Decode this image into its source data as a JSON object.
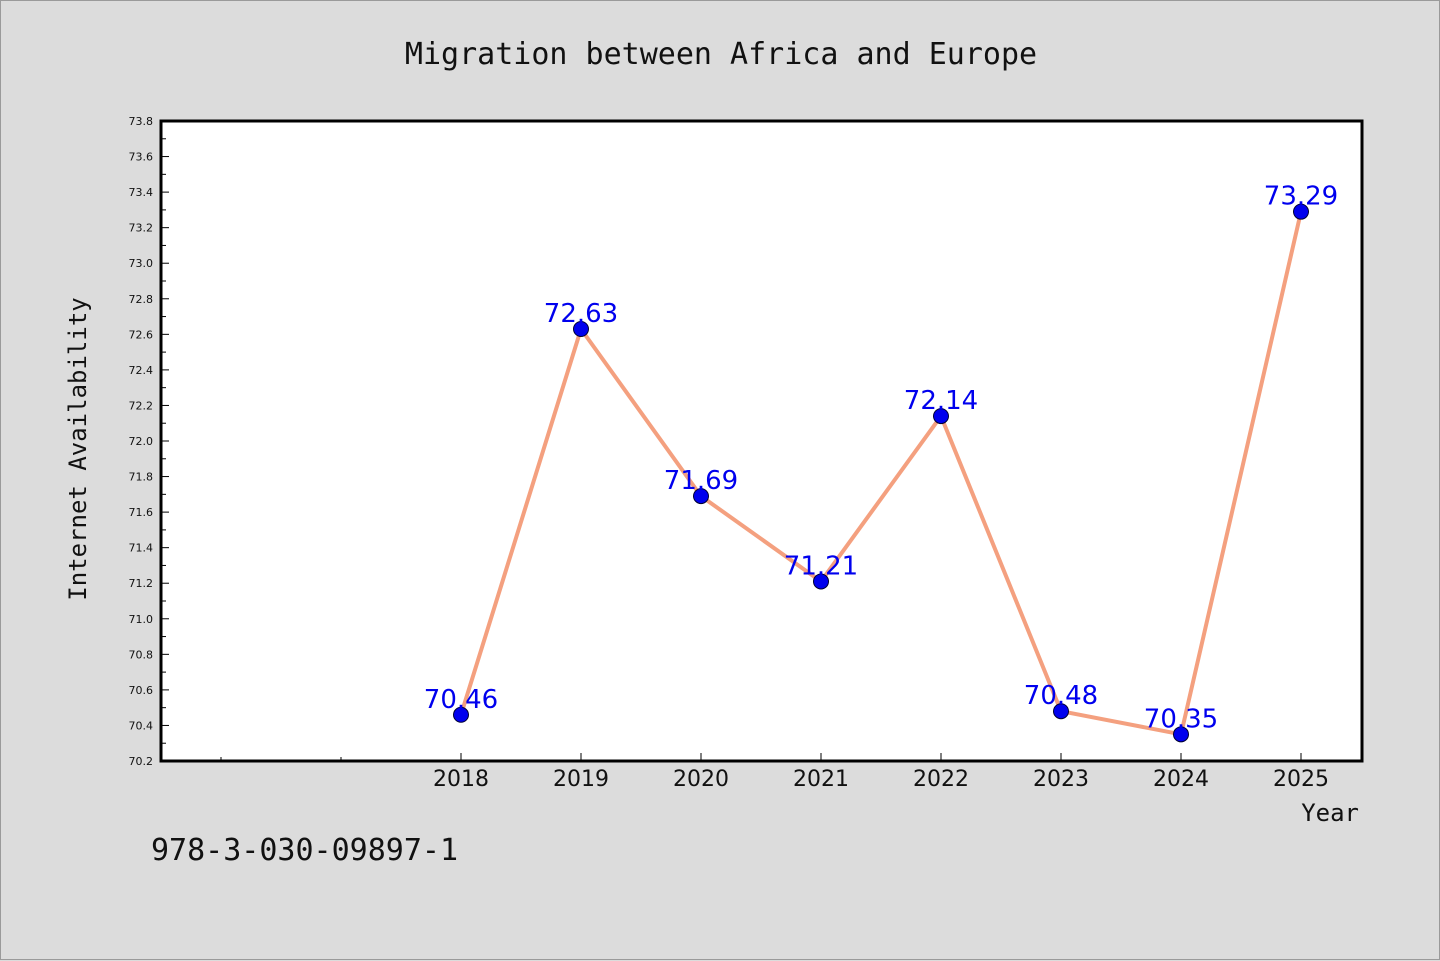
{
  "chart_data": {
    "type": "line",
    "title": "Migration between Africa and Europe",
    "xlabel": "Year",
    "ylabel": "Internet Availability",
    "categories": [
      "2018",
      "2019",
      "2020",
      "2021",
      "2022",
      "2023",
      "2024",
      "2025"
    ],
    "series": [
      {
        "values": [
          70.46,
          72.63,
          71.69,
          71.21,
          72.14,
          70.48,
          70.35,
          73.29
        ]
      }
    ],
    "data_labels": [
      "70.46",
      "72.63",
      "71.69",
      "71.21",
      "72.14",
      "70.48",
      "70.35",
      "73.29"
    ],
    "ylim": [
      70.2,
      73.8
    ],
    "y_ticks": [
      "70.2",
      "70.4",
      "70.6",
      "70.8",
      "71.0",
      "71.2",
      "71.4",
      "71.6",
      "71.8",
      "72.0",
      "72.2",
      "72.4",
      "72.6",
      "72.8",
      "73.0",
      "73.2",
      "73.4",
      "73.6",
      "73.8"
    ],
    "grid": false,
    "legend": "none",
    "colors": {
      "line": "#f4a07f",
      "marker": "#0000ee",
      "label": "#0000ee",
      "background": "#dcdcdc",
      "plot_background": "#ffffff"
    }
  },
  "footer_text": "978-3-030-09897-1"
}
